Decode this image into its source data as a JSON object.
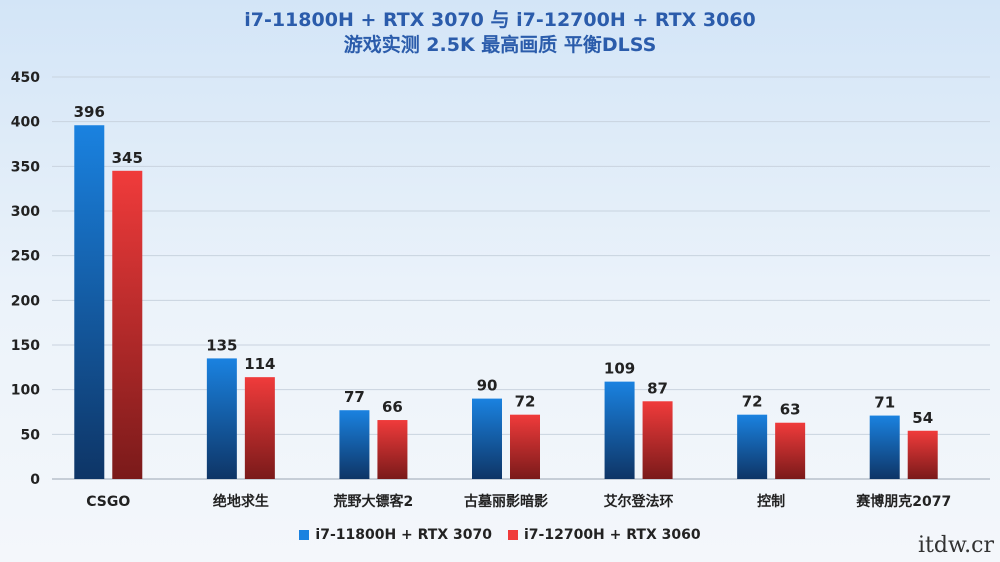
{
  "colors": {
    "title": "#2b5cab",
    "series1_top": "#1a82e0",
    "series1_bottom": "#0e3566",
    "series2_top": "#f03b3b",
    "series2_bottom": "#7a1a1a",
    "grid": "#c9d3df",
    "axis": "#9aa6b3",
    "label": "#222222"
  },
  "watermark": "itdw.cr",
  "chart_data": {
    "type": "bar",
    "title": "i7-11800H + RTX 3070 与 i7-12700H + RTX 3060",
    "subtitle": "游戏实测 2.5K 最高画质 平衡DLSS",
    "categories": [
      "CSGO",
      "绝地求生",
      "荒野大镖客2",
      "古墓丽影暗影",
      "艾尔登法环",
      "控制",
      "赛博朋克2077"
    ],
    "series": [
      {
        "name": "i7-11800H + RTX 3070",
        "values": [
          396,
          135,
          77,
          90,
          109,
          72,
          71
        ]
      },
      {
        "name": "i7-12700H + RTX 3060",
        "values": [
          345,
          114,
          66,
          72,
          87,
          63,
          54
        ]
      }
    ],
    "ylim": [
      0,
      450
    ],
    "yticks": [
      "0",
      "50",
      "100",
      "150",
      "200",
      "250",
      "300",
      "350",
      "400",
      "450"
    ],
    "grid": true,
    "legend_position": "bottom",
    "data_labels": true
  }
}
